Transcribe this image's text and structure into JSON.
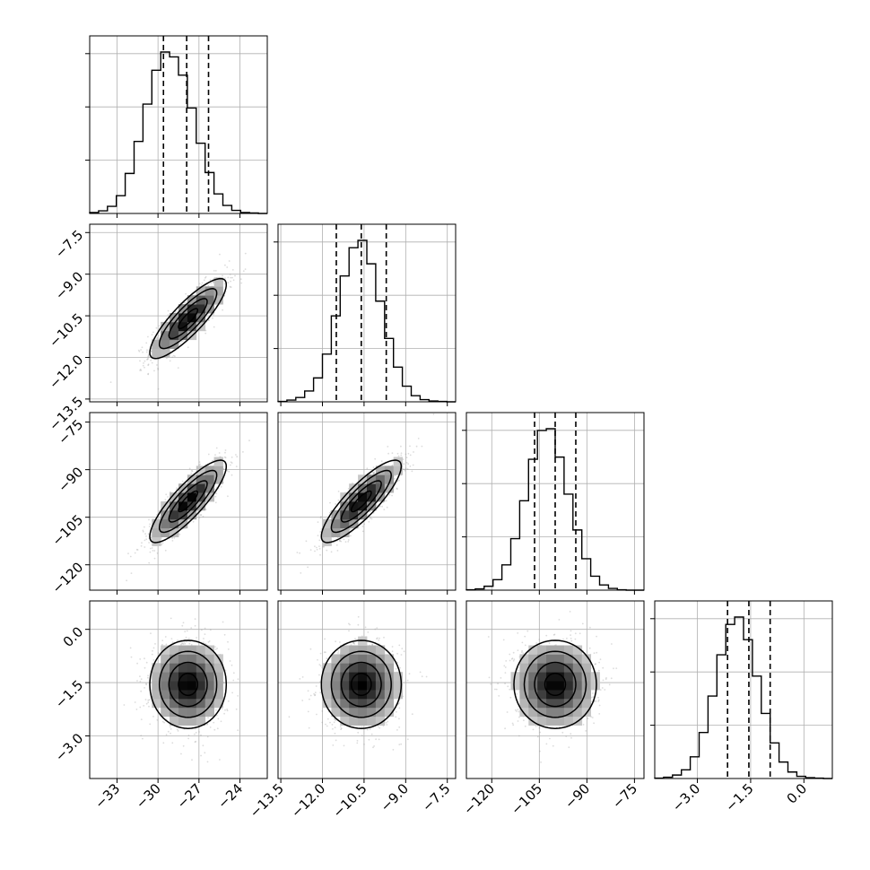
{
  "figure": {
    "type": "corner-plot",
    "colors": {
      "frame": "#000000",
      "grid": "#b0b0b0",
      "histogram": "#000000",
      "quantile_line": "#000000",
      "contour": "#000000",
      "samples": "#9a9a9a"
    }
  },
  "chart_data": {
    "type": "corner",
    "n_params": 4,
    "grid": true,
    "params": [
      {
        "index": 0,
        "range": [
          -35,
          -22
        ],
        "ticks": [
          -33,
          -30,
          -27,
          -24
        ],
        "tick_labels": [
          "−33",
          "−30",
          "−27",
          "−24"
        ],
        "mean": -27.8,
        "std": 1.4,
        "quantiles": [
          -29.6,
          -27.9,
          -26.3
        ]
      },
      {
        "index": 1,
        "range": [
          -13.6,
          -7.2
        ],
        "ticks": [
          -13.5,
          -12.0,
          -10.5,
          -9.0,
          -7.5
        ],
        "tick_labels": [
          "−13.5",
          "−12.0",
          "−10.5",
          "−9.0",
          "−7.5"
        ],
        "mean": -10.6,
        "std": 0.72,
        "quantiles": [
          -11.5,
          -10.6,
          -9.7
        ]
      },
      {
        "index": 2,
        "range": [
          -128,
          -72
        ],
        "ticks": [
          -120,
          -105,
          -90,
          -75
        ],
        "tick_labels": [
          "−120",
          "−105",
          "−90",
          "−75"
        ],
        "mean": -100,
        "std": 6.5,
        "quantiles": [
          -106.5,
          -100,
          -93.5
        ]
      },
      {
        "index": 3,
        "range": [
          -4.2,
          0.8
        ],
        "ticks": [
          -3.0,
          -1.5,
          0.0
        ],
        "tick_labels": [
          "−3.0",
          "−1.5",
          "0.0"
        ],
        "mean": -1.55,
        "std": 0.62,
        "quantiles": [
          -2.15,
          -1.55,
          -0.95
        ]
      }
    ],
    "correlations": [
      [
        1,
        0.85,
        0.85,
        0
      ],
      [
        0.85,
        1,
        0.85,
        0
      ],
      [
        0.85,
        0.85,
        1,
        0
      ],
      [
        0,
        0,
        0,
        1
      ]
    ],
    "histograms": [
      {
        "param": 0,
        "bins": 20,
        "counts": [
          2,
          6,
          16,
          40,
          90,
          162,
          246,
          322,
          363,
          352,
          311,
          237,
          158,
          92,
          44,
          18,
          7,
          2,
          1,
          0
        ]
      },
      {
        "param": 1,
        "bins": 20,
        "counts": [
          1,
          4,
          10,
          25,
          55,
          110,
          198,
          290,
          355,
          372,
          318,
          232,
          146,
          80,
          36,
          14,
          5,
          2,
          1,
          0
        ]
      },
      {
        "param": 2,
        "bins": 20,
        "counts": [
          1,
          3,
          9,
          24,
          58,
          118,
          205,
          300,
          366,
          370,
          305,
          220,
          138,
          72,
          32,
          12,
          4,
          1,
          0,
          0
        ]
      },
      {
        "param": 3,
        "bins": 20,
        "counts": [
          1,
          3,
          8,
          20,
          50,
          106,
          190,
          285,
          355,
          372,
          320,
          236,
          150,
          82,
          38,
          15,
          5,
          2,
          1,
          0
        ]
      }
    ]
  }
}
